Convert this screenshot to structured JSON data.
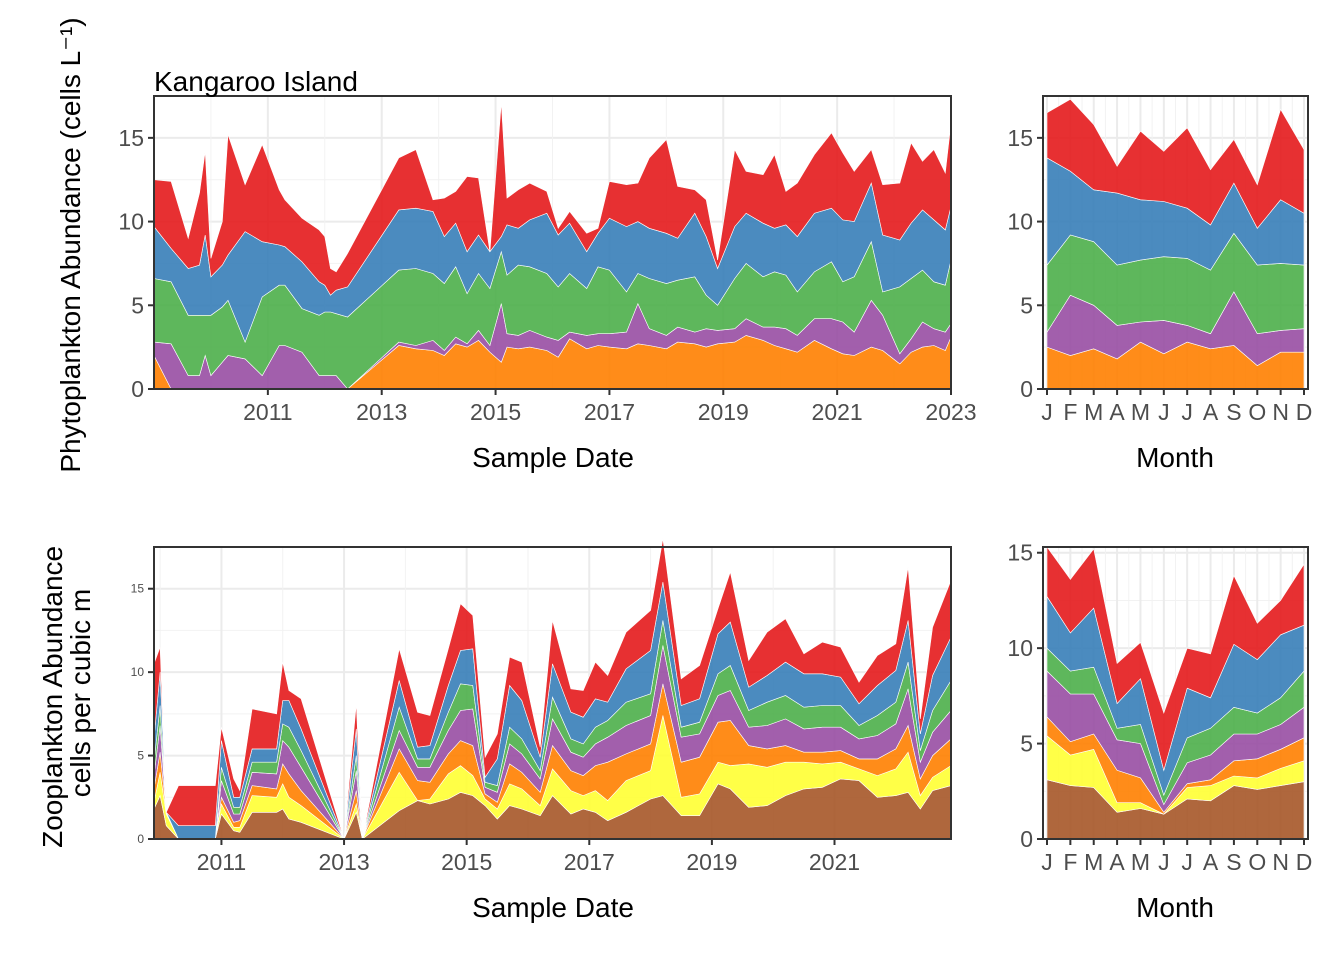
{
  "chart_data": [
    {
      "id": "phyto-time",
      "type": "area",
      "stacked": true,
      "title": "Kangaroo Island",
      "xlabel": "Sample Date",
      "ylabel": "Phytoplankton Abundance (cells L⁻¹)",
      "xlim": [
        2009.0,
        2023.0
      ],
      "ylim": [
        0,
        17.5
      ],
      "xticks": [
        2011,
        2013,
        2015,
        2017,
        2019,
        2021,
        2023
      ],
      "yticks": [
        0,
        5,
        10,
        15
      ],
      "grid": true,
      "legend": "none",
      "x": [
        2009.0,
        2009.3,
        2009.6,
        2009.8,
        2009.9,
        2010.0,
        2010.2,
        2010.3,
        2010.6,
        2010.9,
        2011.2,
        2011.3,
        2011.6,
        2011.9,
        2012.0,
        2012.1,
        2012.2,
        2012.4,
        2013.3,
        2013.6,
        2013.9,
        2014.1,
        2014.3,
        2014.5,
        2014.7,
        2014.9,
        2015.1,
        2015.2,
        2015.4,
        2015.6,
        2015.9,
        2016.1,
        2016.3,
        2016.6,
        2016.8,
        2017.0,
        2017.3,
        2017.5,
        2017.7,
        2018.0,
        2018.2,
        2018.5,
        2018.7,
        2018.9,
        2019.2,
        2019.4,
        2019.7,
        2019.9,
        2020.1,
        2020.3,
        2020.6,
        2020.9,
        2021.1,
        2021.3,
        2021.6,
        2021.8,
        2022.1,
        2022.3,
        2022.5,
        2022.7,
        2022.9,
        2023.0
      ],
      "series": [
        {
          "color": "#ff7f00",
          "values": [
            2.0,
            0.0,
            0.0,
            0.0,
            0.0,
            0.0,
            0.0,
            0.0,
            0.0,
            0.0,
            0.0,
            0.0,
            0.0,
            0.0,
            0.0,
            0.0,
            0.0,
            0.0,
            2.6,
            2.4,
            2.3,
            2.0,
            2.7,
            2.5,
            2.9,
            2.2,
            1.6,
            2.5,
            2.4,
            2.5,
            2.3,
            1.9,
            3.0,
            2.4,
            2.6,
            2.5,
            2.4,
            2.7,
            2.6,
            2.4,
            2.8,
            2.7,
            2.5,
            2.7,
            2.8,
            3.2,
            2.9,
            2.6,
            2.4,
            2.2,
            2.9,
            2.4,
            2.1,
            2.0,
            2.5,
            2.3,
            1.5,
            2.2,
            2.5,
            2.6,
            2.3,
            3.1
          ]
        },
        {
          "color": "#984ea3",
          "values": [
            0.8,
            2.7,
            0.8,
            0.8,
            2.0,
            0.8,
            1.6,
            2.0,
            1.8,
            0.8,
            2.6,
            2.6,
            2.2,
            0.8,
            0.8,
            0.8,
            0.8,
            0.0,
            0.2,
            0.2,
            0.6,
            0.3,
            0.4,
            0.2,
            0.6,
            0.4,
            3.5,
            0.8,
            0.8,
            1.0,
            0.8,
            1.0,
            0.4,
            0.8,
            0.7,
            0.8,
            1.0,
            2.4,
            1.0,
            0.8,
            0.9,
            0.7,
            1.1,
            0.8,
            0.8,
            1.0,
            0.8,
            1.1,
            1.2,
            1.0,
            1.3,
            1.8,
            1.9,
            1.4,
            2.8,
            2.1,
            0.6,
            0.8,
            1.5,
            1.0,
            1.1,
            0.8
          ]
        },
        {
          "color": "#4daf4a",
          "values": [
            3.8,
            3.7,
            3.6,
            3.6,
            2.4,
            3.6,
            3.3,
            3.3,
            1.0,
            4.7,
            3.6,
            3.6,
            2.6,
            3.6,
            3.8,
            3.8,
            3.7,
            4.3,
            4.3,
            4.6,
            4.0,
            4.0,
            4.2,
            3.0,
            3.4,
            3.4,
            3.1,
            3.5,
            4.2,
            3.8,
            3.8,
            3.2,
            3.5,
            2.8,
            4.0,
            3.8,
            2.4,
            1.8,
            3.0,
            3.1,
            2.8,
            3.3,
            2.0,
            1.5,
            3.0,
            3.3,
            3.0,
            3.3,
            3.2,
            2.6,
            2.8,
            3.4,
            2.4,
            3.3,
            3.5,
            1.4,
            4.0,
            3.6,
            3.1,
            2.8,
            2.8,
            3.8
          ]
        },
        {
          "color": "#377eb8",
          "values": [
            3.1,
            2.0,
            2.8,
            3.0,
            4.8,
            2.3,
            2.5,
            2.7,
            6.6,
            3.3,
            2.4,
            2.3,
            2.8,
            2.0,
            1.6,
            1.0,
            1.4,
            1.8,
            3.6,
            3.6,
            3.7,
            2.8,
            2.6,
            2.5,
            2.3,
            2.2,
            0.9,
            3.0,
            2.2,
            2.8,
            3.6,
            3.1,
            3.0,
            2.2,
            2.0,
            3.1,
            3.9,
            3.1,
            3.0,
            3.0,
            2.5,
            3.8,
            3.5,
            2.2,
            3.1,
            3.0,
            3.2,
            2.6,
            3.0,
            3.3,
            3.5,
            3.2,
            3.7,
            3.3,
            3.5,
            3.4,
            2.8,
            3.3,
            3.6,
            3.7,
            3.3,
            3.2
          ]
        },
        {
          "color": "#e41a1c",
          "values": [
            2.8,
            4.0,
            1.8,
            4.3,
            5.0,
            1.1,
            2.6,
            7.2,
            2.8,
            5.8,
            3.3,
            2.8,
            2.6,
            3.1,
            2.9,
            1.6,
            1.1,
            2.0,
            3.1,
            3.5,
            0.7,
            2.3,
            1.9,
            4.5,
            3.4,
            0.0,
            8.0,
            1.6,
            2.3,
            2.2,
            1.3,
            0.4,
            0.7,
            1.1,
            0.3,
            2.2,
            2.5,
            2.3,
            4.2,
            5.6,
            3.1,
            1.4,
            2.2,
            0.5,
            4.6,
            2.5,
            2.9,
            4.4,
            2.0,
            3.2,
            3.5,
            4.5,
            4.0,
            3.0,
            2.0,
            3.0,
            3.4,
            4.8,
            2.9,
            4.2,
            3.4,
            5.0
          ]
        }
      ]
    },
    {
      "id": "phyto-month",
      "type": "area",
      "stacked": true,
      "xlabel": "Month",
      "ylabel": "",
      "categories": [
        "J",
        "F",
        "M",
        "A",
        "M",
        "J",
        "J",
        "A",
        "S",
        "O",
        "N",
        "D"
      ],
      "ylim": [
        0,
        17.5
      ],
      "yticks": [
        0,
        5,
        10,
        15
      ],
      "grid": true,
      "legend": "none",
      "series": [
        {
          "color": "#ff7f00",
          "values": [
            2.5,
            2.0,
            2.4,
            1.8,
            2.8,
            2.1,
            2.8,
            2.4,
            2.6,
            1.4,
            2.2,
            2.2
          ]
        },
        {
          "color": "#984ea3",
          "values": [
            0.9,
            3.6,
            2.6,
            2.0,
            1.2,
            2.0,
            1.0,
            0.9,
            3.2,
            1.9,
            1.3,
            1.4
          ]
        },
        {
          "color": "#4daf4a",
          "values": [
            4.0,
            3.6,
            3.8,
            3.6,
            3.7,
            3.8,
            4.0,
            3.8,
            3.5,
            4.1,
            4.0,
            3.8
          ]
        },
        {
          "color": "#377eb8",
          "values": [
            6.4,
            3.8,
            3.1,
            4.3,
            3.6,
            3.3,
            3.0,
            2.7,
            3.0,
            2.2,
            3.8,
            3.1
          ]
        },
        {
          "color": "#e41a1c",
          "values": [
            2.7,
            4.3,
            3.9,
            1.6,
            4.1,
            3.0,
            4.8,
            3.3,
            2.6,
            2.6,
            5.4,
            3.8
          ]
        }
      ]
    },
    {
      "id": "zoo-time",
      "type": "area",
      "stacked": true,
      "xlabel": "Sample Date",
      "ylabel": "Zooplankton Abundance\ncells per cubic m",
      "xlim": [
        2009.9,
        2022.9
      ],
      "ylim": [
        0,
        17.5
      ],
      "xticks": [
        2011,
        2013,
        2015,
        2017,
        2019,
        2021
      ],
      "yticks": [
        0,
        5,
        10,
        15
      ],
      "grid": true,
      "legend": "none",
      "x": [
        2009.9,
        2010.0,
        2010.1,
        2010.3,
        2010.9,
        2011.0,
        2011.2,
        2011.3,
        2011.5,
        2011.9,
        2012.0,
        2012.1,
        2012.3,
        2013.0,
        2013.2,
        2013.3,
        2013.9,
        2014.2,
        2014.4,
        2014.7,
        2014.9,
        2015.1,
        2015.3,
        2015.5,
        2015.7,
        2015.9,
        2016.2,
        2016.4,
        2016.7,
        2016.9,
        2017.1,
        2017.3,
        2017.6,
        2018.0,
        2018.2,
        2018.5,
        2018.8,
        2019.1,
        2019.3,
        2019.6,
        2019.9,
        2020.2,
        2020.5,
        2020.8,
        2021.1,
        2021.4,
        2021.7,
        2022.0,
        2022.2,
        2022.4,
        2022.6,
        2022.9
      ],
      "series": [
        {
          "color": "#a65628",
          "values": [
            1.8,
            2.6,
            0.8,
            0.0,
            0.0,
            1.5,
            0.5,
            0.4,
            1.6,
            1.6,
            1.8,
            1.2,
            1.0,
            0.0,
            1.6,
            0.0,
            1.7,
            2.3,
            2.1,
            2.4,
            2.8,
            2.6,
            2.0,
            1.2,
            2.0,
            1.8,
            1.4,
            2.6,
            1.5,
            1.8,
            1.6,
            1.1,
            1.6,
            2.4,
            2.6,
            1.4,
            1.4,
            3.3,
            3.0,
            1.9,
            2.0,
            2.6,
            3.0,
            3.1,
            3.6,
            3.5,
            2.5,
            2.6,
            2.8,
            1.8,
            2.9,
            3.2
          ]
        },
        {
          "color": "#ffff33",
          "values": [
            0.4,
            1.4,
            0.7,
            0.0,
            0.0,
            0.6,
            0.2,
            0.3,
            1.0,
            0.9,
            1.5,
            1.3,
            1.0,
            0.0,
            0.5,
            0.0,
            2.3,
            0.0,
            0.3,
            1.5,
            1.6,
            1.2,
            0.4,
            0.6,
            1.3,
            1.2,
            0.6,
            1.6,
            1.4,
            0.8,
            1.3,
            1.2,
            1.9,
            1.7,
            4.8,
            1.1,
            1.3,
            1.3,
            1.4,
            2.6,
            2.3,
            2.0,
            1.6,
            1.4,
            1.0,
            0.7,
            1.3,
            1.6,
            2.4,
            0.8,
            0.8,
            1.2
          ]
        },
        {
          "color": "#ff7f00",
          "values": [
            0.8,
            1.2,
            0.1,
            0.0,
            0.0,
            0.4,
            0.3,
            0.4,
            0.6,
            0.5,
            1.2,
            1.4,
            0.9,
            0.0,
            0.8,
            0.0,
            1.4,
            1.2,
            1.0,
            1.2,
            1.5,
            1.8,
            0.3,
            0.4,
            1.2,
            1.0,
            0.8,
            1.4,
            1.2,
            1.2,
            1.5,
            2.3,
            1.6,
            1.6,
            1.9,
            2.1,
            2.2,
            2.4,
            2.7,
            1.1,
            1.1,
            1.0,
            0.6,
            0.7,
            0.7,
            0.6,
            1.0,
            1.2,
            1.6,
            1.0,
            1.3,
            1.6
          ]
        },
        {
          "color": "#984ea3",
          "values": [
            0.8,
            1.6,
            0.0,
            0.0,
            0.0,
            1.0,
            0.5,
            0.4,
            0.8,
            0.9,
            1.4,
            1.6,
            1.4,
            0.0,
            1.2,
            0.0,
            1.1,
            0.8,
            0.9,
            1.4,
            1.8,
            2.2,
            0.4,
            0.6,
            1.2,
            1.1,
            0.8,
            1.6,
            1.1,
            1.1,
            1.3,
            1.5,
            1.7,
            1.7,
            2.3,
            1.5,
            1.4,
            1.6,
            1.8,
            1.1,
            1.4,
            1.6,
            1.4,
            1.5,
            1.4,
            1.2,
            1.4,
            1.5,
            2.2,
            1.0,
            1.4,
            1.7
          ]
        },
        {
          "color": "#4daf4a",
          "values": [
            0.8,
            1.2,
            0.0,
            0.0,
            0.0,
            0.8,
            0.4,
            0.4,
            0.6,
            0.7,
            1.0,
            1.2,
            1.0,
            0.0,
            0.9,
            0.0,
            1.4,
            0.5,
            0.5,
            1.1,
            1.6,
            1.4,
            0.3,
            0.4,
            1.0,
            0.9,
            0.5,
            1.3,
            0.8,
            0.8,
            1.0,
            1.0,
            1.4,
            1.3,
            1.5,
            0.6,
            0.7,
            1.3,
            1.5,
            1.0,
            1.4,
            1.4,
            1.3,
            1.3,
            1.3,
            0.8,
            1.2,
            1.3,
            1.6,
            0.7,
            1.3,
            1.8
          ]
        },
        {
          "color": "#377eb8",
          "values": [
            1.4,
            2.0,
            0.0,
            0.8,
            0.8,
            1.6,
            0.6,
            0.6,
            0.8,
            0.8,
            1.4,
            1.6,
            1.3,
            0.0,
            1.6,
            0.0,
            1.6,
            0.7,
            0.8,
            1.6,
            2.0,
            2.2,
            0.3,
            1.6,
            2.5,
            2.3,
            0.8,
            2.0,
            1.6,
            1.6,
            1.7,
            1.1,
            2.0,
            2.6,
            2.3,
            1.3,
            1.4,
            2.4,
            2.6,
            1.4,
            1.6,
            2.0,
            2.0,
            1.9,
            1.7,
            1.3,
            1.8,
            1.9,
            2.5,
            1.0,
            2.1,
            2.6
          ]
        },
        {
          "color": "#e41a1c",
          "values": [
            4.5,
            1.5,
            0.0,
            2.4,
            2.4,
            0.8,
            1.1,
            0.4,
            2.4,
            2.1,
            2.3,
            0.6,
            1.8,
            0.0,
            1.5,
            0.0,
            1.9,
            2.1,
            1.8,
            2.2,
            2.8,
            2.0,
            1.2,
            1.5,
            1.7,
            2.3,
            0.6,
            2.6,
            1.4,
            1.6,
            2.2,
            1.6,
            2.2,
            2.4,
            2.6,
            1.6,
            2.0,
            1.5,
            3.0,
            1.6,
            2.6,
            2.6,
            1.2,
            1.9,
            1.8,
            1.3,
            1.8,
            1.6,
            3.2,
            0.9,
            2.9,
            3.4
          ]
        }
      ]
    },
    {
      "id": "zoo-month",
      "type": "area",
      "stacked": true,
      "xlabel": "Month",
      "ylabel": "",
      "categories": [
        "J",
        "F",
        "M",
        "A",
        "M",
        "J",
        "J",
        "A",
        "S",
        "O",
        "N",
        "D"
      ],
      "ylim": [
        0,
        15.3
      ],
      "yticks": [
        0,
        5,
        10,
        15
      ],
      "grid": true,
      "legend": "none",
      "series": [
        {
          "color": "#a65628",
          "values": [
            3.1,
            2.8,
            2.7,
            1.4,
            1.6,
            1.3,
            2.1,
            2.0,
            2.8,
            2.6,
            2.8,
            3.0
          ]
        },
        {
          "color": "#ffff33",
          "values": [
            2.3,
            1.6,
            2.0,
            0.5,
            0.3,
            0.0,
            0.6,
            0.8,
            0.5,
            0.6,
            0.9,
            1.1
          ]
        },
        {
          "color": "#ff7f00",
          "values": [
            1.0,
            0.7,
            0.8,
            1.7,
            1.3,
            0.1,
            0.2,
            0.3,
            0.8,
            1.0,
            1.0,
            1.2
          ]
        },
        {
          "color": "#984ea3",
          "values": [
            2.4,
            2.5,
            2.1,
            1.6,
            1.8,
            0.4,
            1.1,
            1.3,
            1.4,
            1.3,
            1.3,
            1.6
          ]
        },
        {
          "color": "#4daf4a",
          "values": [
            1.2,
            1.2,
            1.4,
            0.6,
            1.0,
            0.5,
            1.3,
            1.4,
            1.4,
            1.1,
            1.4,
            1.9
          ]
        },
        {
          "color": "#377eb8",
          "values": [
            2.7,
            2.0,
            3.1,
            1.3,
            2.4,
            1.3,
            2.6,
            1.6,
            3.3,
            2.8,
            3.3,
            2.4
          ]
        },
        {
          "color": "#e41a1c",
          "values": [
            2.6,
            2.8,
            3.1,
            2.1,
            1.9,
            3.0,
            2.1,
            2.3,
            3.6,
            1.9,
            1.8,
            3.2
          ]
        }
      ]
    }
  ]
}
